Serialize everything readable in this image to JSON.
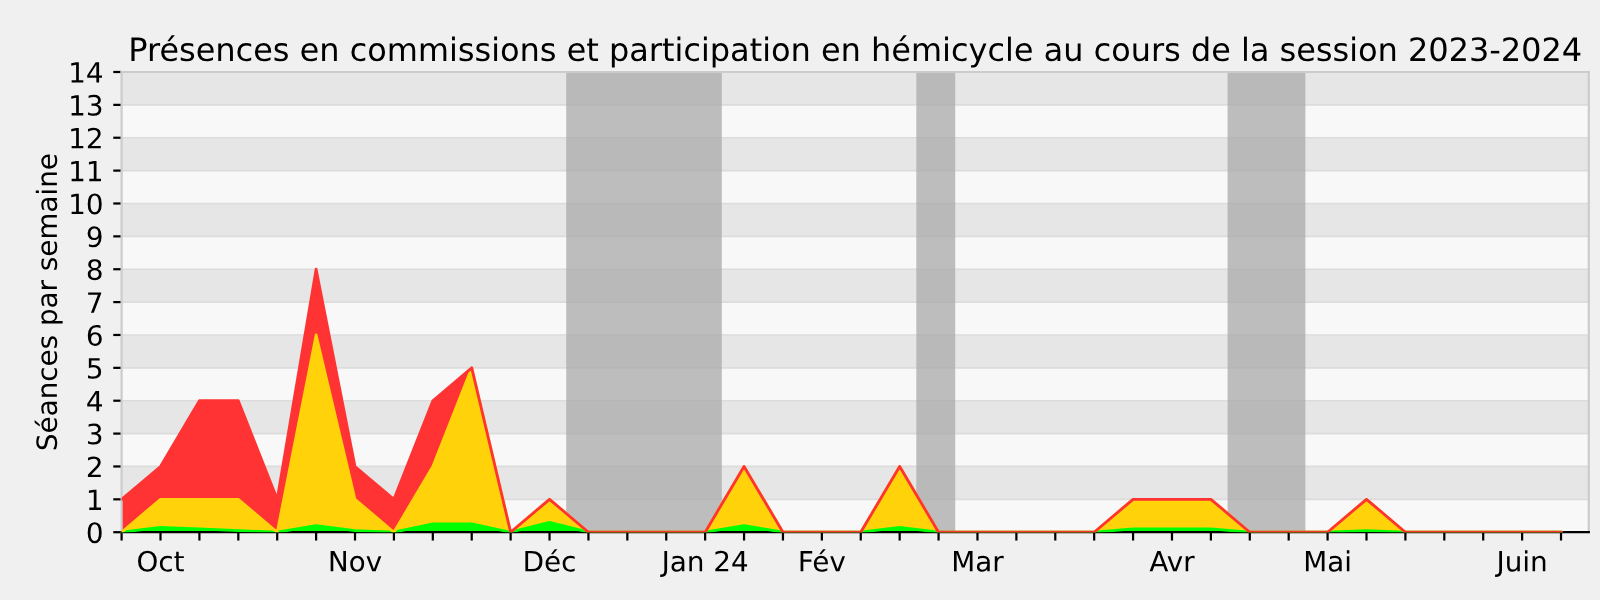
{
  "chart_data": {
    "type": "area",
    "stacked": true,
    "title": "Présences en commissions et participation en hémicycle au cours de la session 2023-2024",
    "ylabel": "Séances par semaine",
    "x": [
      "2023-10-02",
      "2023-10-09",
      "2023-10-16",
      "2023-10-23",
      "2023-10-30",
      "2023-11-06",
      "2023-11-13",
      "2023-11-20",
      "2023-11-27",
      "2023-12-04",
      "2023-12-11",
      "2023-12-18",
      "2023-12-25",
      "2024-01-01",
      "2024-01-08",
      "2024-01-15",
      "2024-01-22",
      "2024-01-29",
      "2024-02-05",
      "2024-02-12",
      "2024-02-19",
      "2024-02-26",
      "2024-03-04",
      "2024-03-11",
      "2024-03-18",
      "2024-03-25",
      "2024-04-01",
      "2024-04-08",
      "2024-04-15",
      "2024-04-22",
      "2024-04-29",
      "2024-05-06",
      "2024-05-13",
      "2024-05-20",
      "2024-05-27",
      "2024-06-03",
      "2024-06-10",
      "2024-06-17"
    ],
    "series": [
      {
        "color": "#00ff00",
        "values": [
          0,
          0.15,
          0.1,
          0.05,
          0,
          0.2,
          0.05,
          0,
          0.25,
          0.25,
          0,
          0.3,
          0,
          0,
          0,
          0,
          0.2,
          0,
          0,
          0,
          0.15,
          0,
          0,
          0,
          0,
          0,
          0.1,
          0.1,
          0.1,
          0,
          0,
          0,
          0.05,
          0,
          0,
          0,
          0,
          0
        ]
      },
      {
        "color": "#ffd20a",
        "values": [
          0,
          0.85,
          0.9,
          0.95,
          0,
          5.8,
          0.95,
          0,
          1.75,
          4.75,
          0,
          0.7,
          0,
          0,
          0,
          0,
          1.8,
          0,
          0,
          0,
          1.85,
          0,
          0,
          0,
          0,
          0,
          0.9,
          0.9,
          0.9,
          0,
          0,
          0,
          0.95,
          0,
          0,
          0,
          0,
          0
        ]
      },
      {
        "color": "#ff3333",
        "values": [
          1,
          1,
          3,
          3,
          1,
          2,
          1,
          1,
          2,
          0,
          0,
          0,
          0,
          0,
          0,
          0,
          0,
          0,
          0,
          0,
          0,
          0,
          0,
          0,
          0,
          0,
          0,
          0,
          0,
          0,
          0,
          0,
          0,
          0,
          0,
          0,
          0,
          0
        ]
      }
    ],
    "xlim": [
      "2023-10-02",
      "2024-06-22"
    ],
    "xticks": [
      {
        "value": "2023-10-02",
        "label": null
      },
      {
        "value": "2023-10-09",
        "label": "Oct"
      },
      {
        "value": "2023-10-16",
        "label": null
      },
      {
        "value": "2023-10-23",
        "label": null
      },
      {
        "value": "2023-10-30",
        "label": null
      },
      {
        "value": "2023-11-06",
        "label": null
      },
      {
        "value": "2023-11-13",
        "label": "Nov"
      },
      {
        "value": "2023-11-20",
        "label": null
      },
      {
        "value": "2023-11-27",
        "label": null
      },
      {
        "value": "2023-12-04",
        "label": null
      },
      {
        "value": "2023-12-11",
        "label": null
      },
      {
        "value": "2023-12-18",
        "label": "Déc"
      },
      {
        "value": "2023-12-25",
        "label": null
      },
      {
        "value": "2024-01-01",
        "label": null
      },
      {
        "value": "2024-01-08",
        "label": null
      },
      {
        "value": "2024-01-15",
        "label": "Jan 24"
      },
      {
        "value": "2024-01-22",
        "label": null
      },
      {
        "value": "2024-01-29",
        "label": null
      },
      {
        "value": "2024-02-05",
        "label": "Fév"
      },
      {
        "value": "2024-02-12",
        "label": null
      },
      {
        "value": "2024-02-19",
        "label": null
      },
      {
        "value": "2024-02-26",
        "label": null
      },
      {
        "value": "2024-03-04",
        "label": "Mar"
      },
      {
        "value": "2024-03-11",
        "label": null
      },
      {
        "value": "2024-03-18",
        "label": null
      },
      {
        "value": "2024-03-25",
        "label": null
      },
      {
        "value": "2024-04-01",
        "label": null
      },
      {
        "value": "2024-04-08",
        "label": "Avr"
      },
      {
        "value": "2024-04-15",
        "label": null
      },
      {
        "value": "2024-04-22",
        "label": null
      },
      {
        "value": "2024-04-29",
        "label": null
      },
      {
        "value": "2024-05-06",
        "label": "Mai"
      },
      {
        "value": "2024-05-13",
        "label": null
      },
      {
        "value": "2024-05-20",
        "label": null
      },
      {
        "value": "2024-05-27",
        "label": null
      },
      {
        "value": "2024-06-03",
        "label": null
      },
      {
        "value": "2024-06-10",
        "label": "Juin"
      },
      {
        "value": "2024-06-17",
        "label": null
      }
    ],
    "ylim": [
      0,
      14
    ],
    "yticks": [
      0,
      1,
      2,
      3,
      4,
      5,
      6,
      7,
      8,
      9,
      10,
      11,
      12,
      13,
      14
    ],
    "grid": "y",
    "bands": [
      {
        "axis": "x",
        "from": "2023-12-21",
        "to": "2024-01-18",
        "color": "#aaaaaa"
      },
      {
        "axis": "x",
        "from": "2024-02-22",
        "to": "2024-02-29",
        "color": "#aaaaaa"
      },
      {
        "axis": "x",
        "from": "2024-04-18",
        "to": "2024-05-02",
        "color": "#aaaaaa"
      }
    ]
  }
}
